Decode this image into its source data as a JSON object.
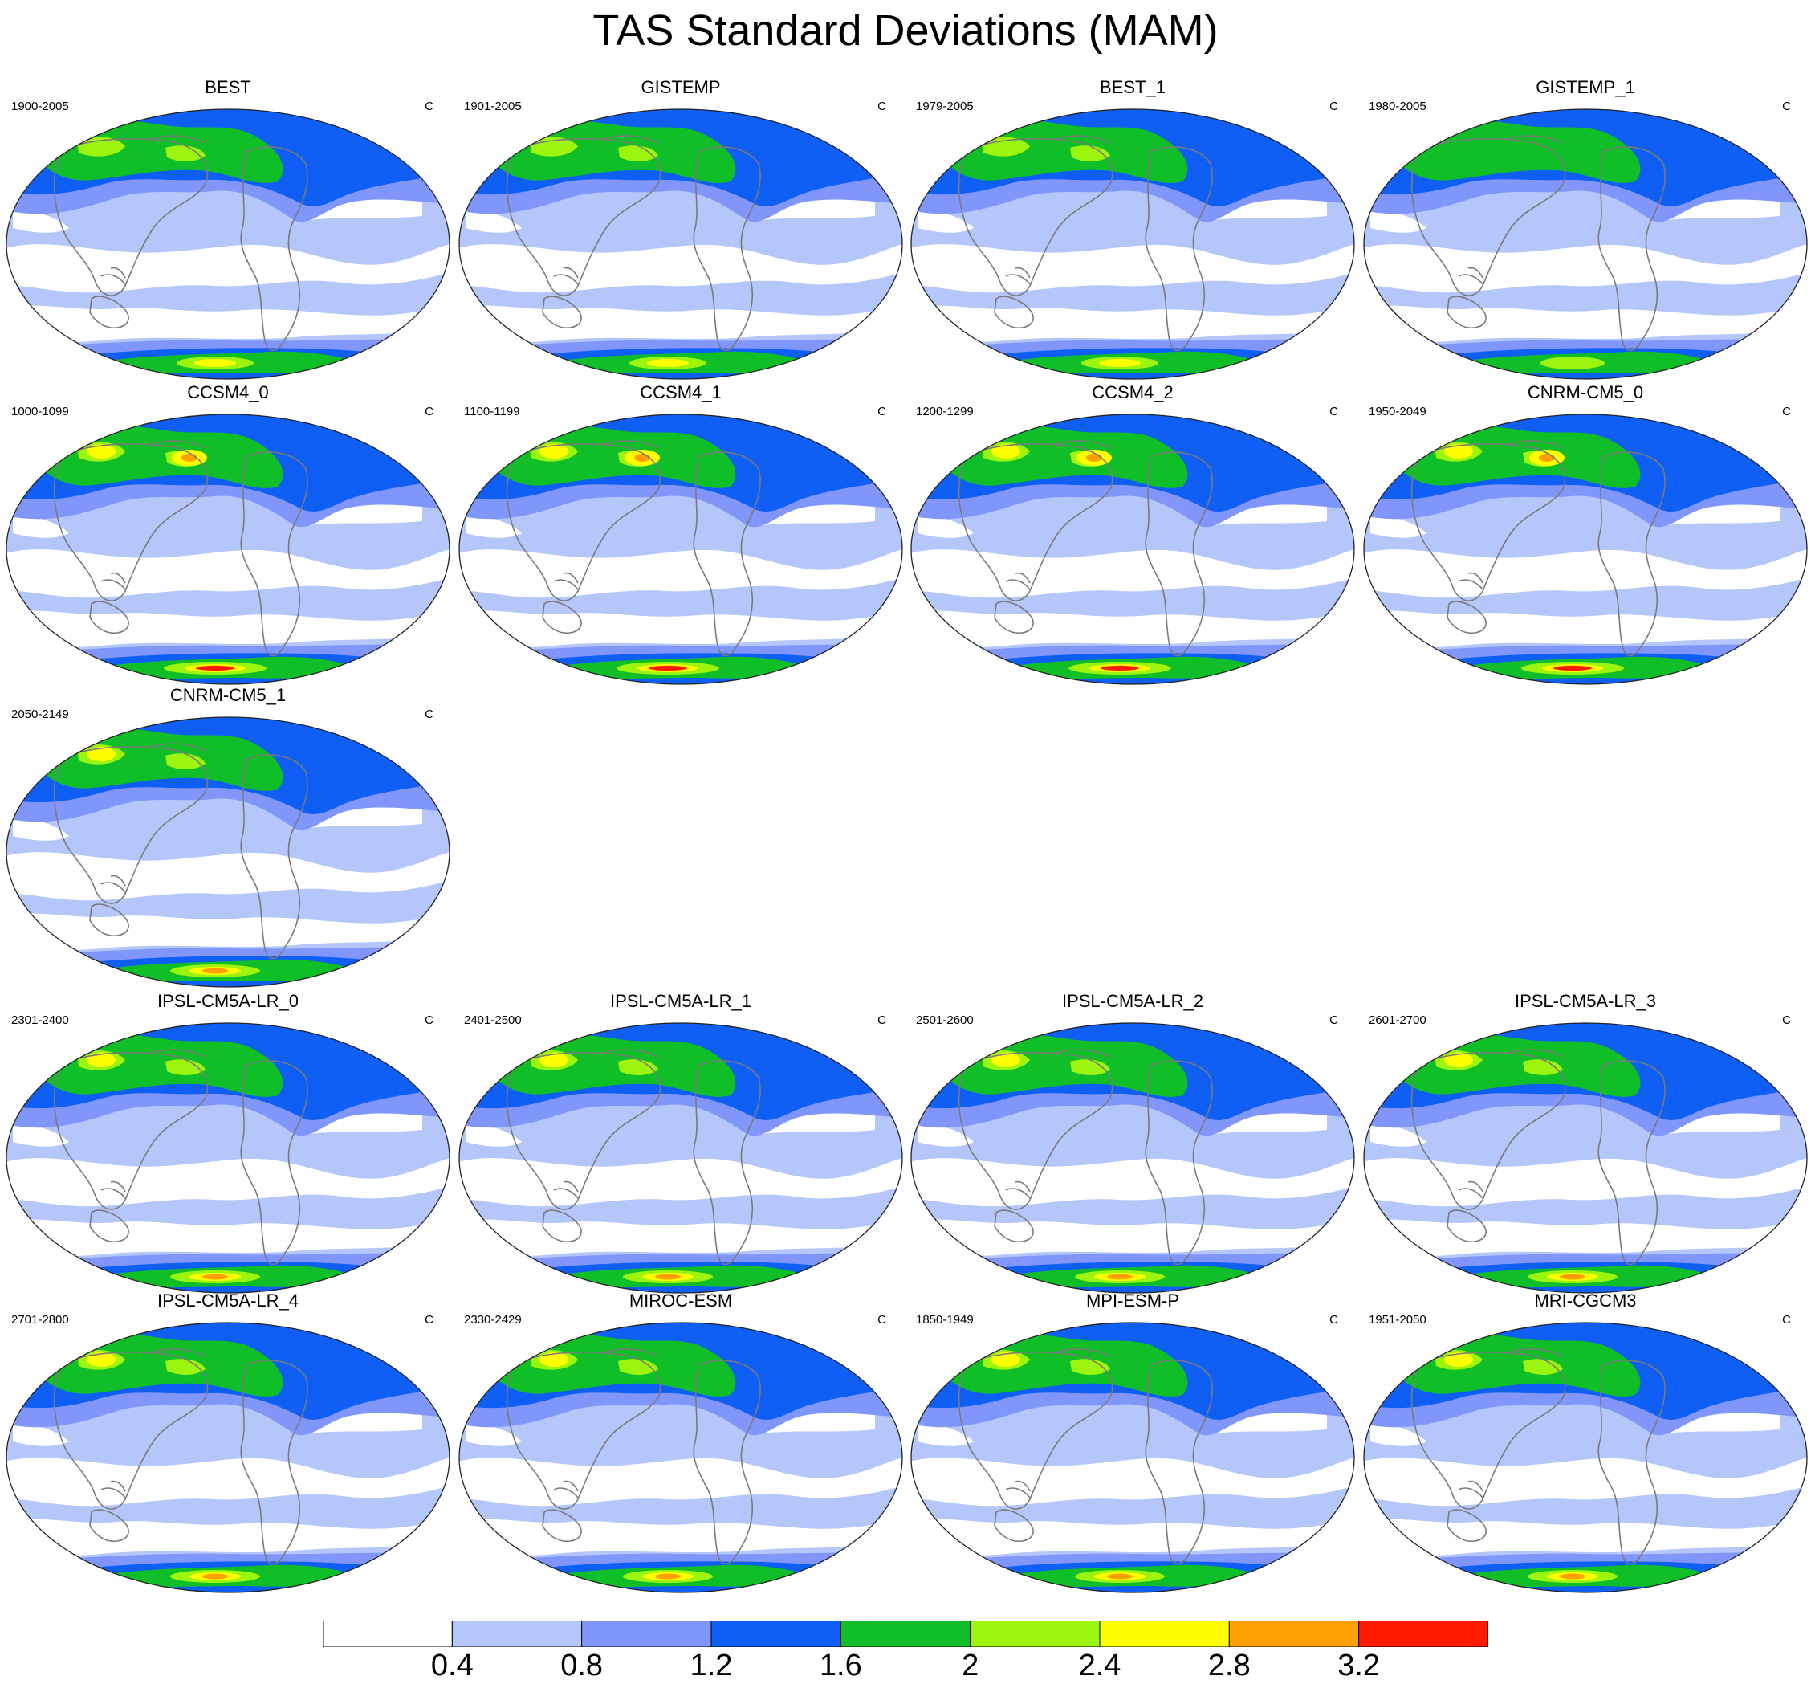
{
  "title": "TAS Standard Deviations (MAM)",
  "panels": [
    {
      "name": "BEST",
      "years": "1900-2005",
      "units": "C",
      "intensity": 1
    },
    {
      "name": "GISTEMP",
      "years": "1901-2005",
      "units": "C",
      "intensity": 1
    },
    {
      "name": "BEST_1",
      "years": "1979-2005",
      "units": "C",
      "intensity": 1
    },
    {
      "name": "GISTEMP_1",
      "years": "1980-2005",
      "units": "C",
      "intensity": 0
    },
    {
      "name": "CCSM4_0",
      "years": "1000-1099",
      "units": "C",
      "intensity": 3
    },
    {
      "name": "CCSM4_1",
      "years": "1100-1199",
      "units": "C",
      "intensity": 3
    },
    {
      "name": "CCSM4_2",
      "years": "1200-1299",
      "units": "C",
      "intensity": 3
    },
    {
      "name": "CNRM-CM5_0",
      "years": "1950-2049",
      "units": "C",
      "intensity": 3
    },
    {
      "name": "CNRM-CM5_1",
      "years": "2050-2149",
      "units": "C",
      "intensity": 2
    },
    {
      "name": "IPSL-CM5A-LR_0",
      "years": "2301-2400",
      "units": "C",
      "intensity": 2
    },
    {
      "name": "IPSL-CM5A-LR_1",
      "years": "2401-2500",
      "units": "C",
      "intensity": 2
    },
    {
      "name": "IPSL-CM5A-LR_2",
      "years": "2501-2600",
      "units": "C",
      "intensity": 2
    },
    {
      "name": "IPSL-CM5A-LR_3",
      "years": "2601-2700",
      "units": "C",
      "intensity": 2
    },
    {
      "name": "IPSL-CM5A-LR_4",
      "years": "2701-2800",
      "units": "C",
      "intensity": 2
    },
    {
      "name": "MIROC-ESM",
      "years": "2330-2429",
      "units": "C",
      "intensity": 2
    },
    {
      "name": "MPI-ESM-P",
      "years": "1850-1949",
      "units": "C",
      "intensity": 2
    },
    {
      "name": "MRI-CGCM3",
      "years": "1951-2050",
      "units": "C",
      "intensity": 2
    }
  ],
  "colorbar": {
    "labels": [
      "0.4",
      "0.8",
      "1.2",
      "1.6",
      "2",
      "2.4",
      "2.8",
      "3.2"
    ],
    "colors": [
      "#ffffff",
      "#b4c6fa",
      "#8196fa",
      "#0f5ff5",
      "#10be28",
      "#9bf50f",
      "#ffff00",
      "#ffa000",
      "#ff1a00"
    ]
  }
}
